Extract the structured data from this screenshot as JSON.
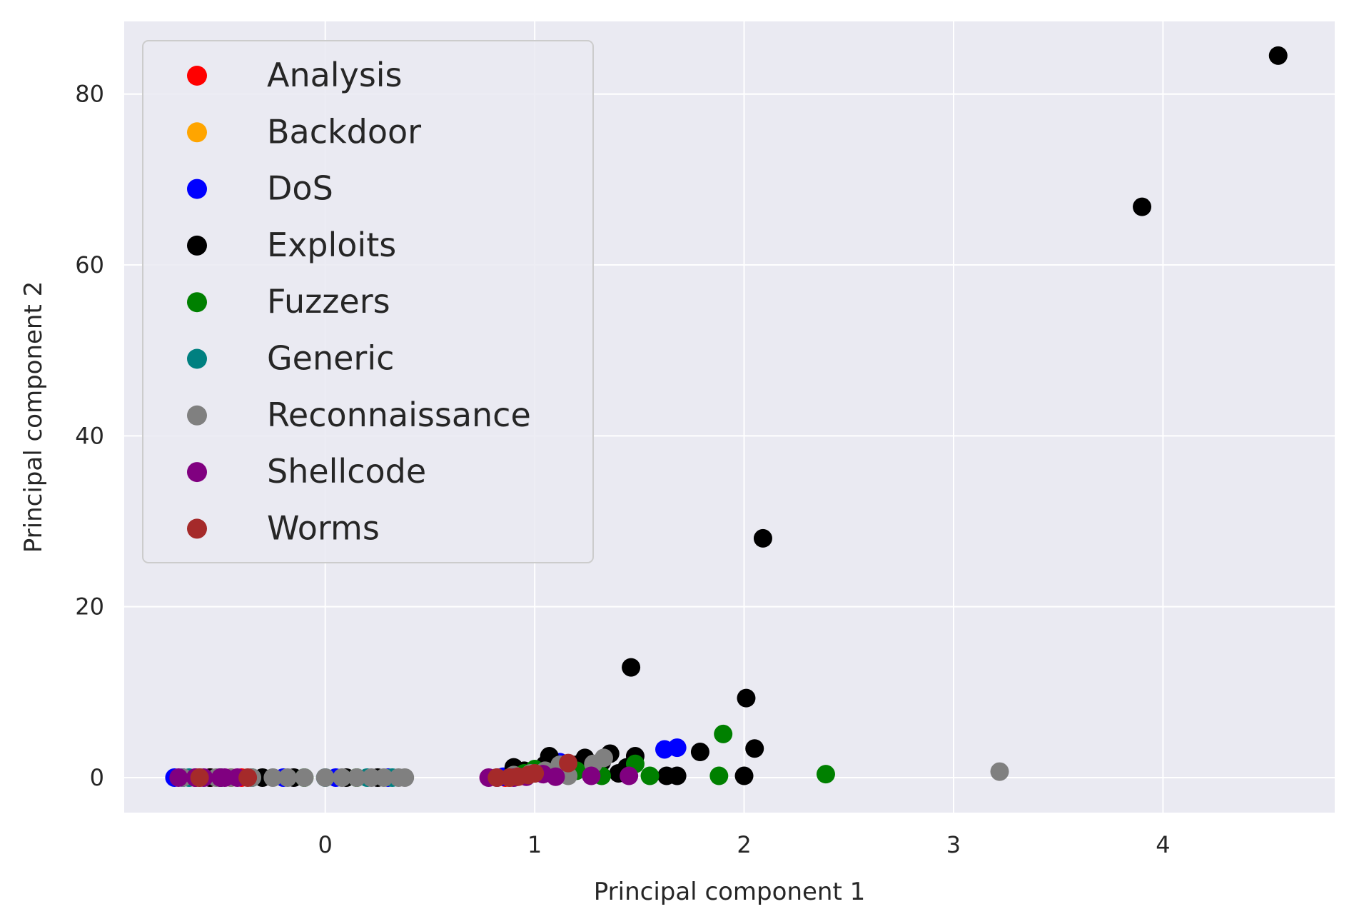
{
  "chart_data": {
    "type": "scatter",
    "title": "",
    "xlabel": "Principal component 1",
    "ylabel": "Principal component 2",
    "xlim": [
      -0.96,
      4.82
    ],
    "ylim": [
      -4.1,
      88.5
    ],
    "xticks": [
      0,
      1,
      2,
      3,
      4
    ],
    "yticks": [
      0,
      20,
      40,
      60,
      80
    ],
    "grid": true,
    "legend_position": "upper-left",
    "series": [
      {
        "name": "Analysis",
        "color": "#ff0000",
        "points": [
          [
            -0.62,
            0.0
          ],
          [
            -0.55,
            0.0
          ],
          [
            -0.4,
            0.0
          ],
          [
            0.86,
            0.0
          ],
          [
            0.92,
            0.1
          ]
        ]
      },
      {
        "name": "Backdoor",
        "color": "#ffa500",
        "points": [
          [
            -0.6,
            0.0
          ],
          [
            -0.45,
            0.0
          ],
          [
            0.88,
            0.0
          ],
          [
            0.95,
            0.2
          ]
        ]
      },
      {
        "name": "DoS",
        "color": "#0000ff",
        "points": [
          [
            -0.72,
            0.0
          ],
          [
            -0.68,
            0.0
          ],
          [
            -0.5,
            0.0
          ],
          [
            -0.2,
            0.0
          ],
          [
            0.05,
            0.0
          ],
          [
            0.3,
            0.0
          ],
          [
            0.85,
            0.1
          ],
          [
            1.0,
            0.6
          ],
          [
            1.12,
            1.8
          ],
          [
            1.3,
            1.0
          ],
          [
            1.62,
            3.3
          ],
          [
            1.68,
            3.5
          ]
        ]
      },
      {
        "name": "Exploits",
        "color": "#000000",
        "points": [
          [
            -0.55,
            0.0
          ],
          [
            -0.3,
            0.0
          ],
          [
            -0.15,
            0.0
          ],
          [
            0.1,
            0.0
          ],
          [
            0.25,
            0.0
          ],
          [
            0.9,
            1.2
          ],
          [
            0.95,
            0.8
          ],
          [
            1.0,
            0.5
          ],
          [
            1.05,
            1.5
          ],
          [
            1.07,
            2.5
          ],
          [
            1.1,
            1.0
          ],
          [
            1.15,
            0.8
          ],
          [
            1.2,
            1.5
          ],
          [
            1.24,
            2.3
          ],
          [
            1.28,
            0.7
          ],
          [
            1.32,
            1.8
          ],
          [
            1.36,
            2.8
          ],
          [
            1.4,
            0.5
          ],
          [
            1.44,
            1.2
          ],
          [
            1.48,
            2.5
          ],
          [
            1.46,
            12.9
          ],
          [
            1.63,
            0.2
          ],
          [
            1.68,
            0.2
          ],
          [
            1.79,
            3.0
          ],
          [
            2.0,
            0.2
          ],
          [
            2.01,
            9.3
          ],
          [
            2.05,
            3.4
          ],
          [
            2.09,
            28.0
          ],
          [
            3.9,
            66.8
          ],
          [
            4.55,
            84.5
          ]
        ]
      },
      {
        "name": "Fuzzers",
        "color": "#008000",
        "points": [
          [
            -0.5,
            0.0
          ],
          [
            -0.1,
            0.0
          ],
          [
            0.15,
            0.0
          ],
          [
            0.95,
            0.5
          ],
          [
            1.0,
            1.0
          ],
          [
            1.2,
            0.8
          ],
          [
            1.32,
            0.2
          ],
          [
            1.48,
            1.6
          ],
          [
            1.55,
            0.2
          ],
          [
            1.88,
            0.2
          ],
          [
            1.9,
            5.1
          ],
          [
            2.39,
            0.4
          ]
        ]
      },
      {
        "name": "Generic",
        "color": "#008080",
        "points": [
          [
            -0.65,
            0.0
          ],
          [
            -0.35,
            0.0
          ],
          [
            0.0,
            0.0
          ],
          [
            0.2,
            0.0
          ],
          [
            0.32,
            0.0
          ],
          [
            1.1,
            0.5
          ]
        ]
      },
      {
        "name": "Reconnaissance",
        "color": "#808080",
        "points": [
          [
            -0.68,
            0.0
          ],
          [
            -0.6,
            0.0
          ],
          [
            -0.52,
            0.0
          ],
          [
            -0.45,
            0.0
          ],
          [
            -0.35,
            0.0
          ],
          [
            -0.25,
            0.0
          ],
          [
            -0.18,
            0.0
          ],
          [
            -0.1,
            0.0
          ],
          [
            0.0,
            0.0
          ],
          [
            0.08,
            0.0
          ],
          [
            0.15,
            0.0
          ],
          [
            0.22,
            0.0
          ],
          [
            0.28,
            0.0
          ],
          [
            0.35,
            0.0
          ],
          [
            0.38,
            0.0
          ],
          [
            0.9,
            0.3
          ],
          [
            0.98,
            0.5
          ],
          [
            1.05,
            0.8
          ],
          [
            1.12,
            1.5
          ],
          [
            1.16,
            0.2
          ],
          [
            1.28,
            1.6
          ],
          [
            1.33,
            2.3
          ],
          [
            3.22,
            0.7
          ]
        ]
      },
      {
        "name": "Shellcode",
        "color": "#800080",
        "points": [
          [
            -0.7,
            0.0
          ],
          [
            -0.62,
            0.0
          ],
          [
            -0.58,
            0.0
          ],
          [
            -0.5,
            0.0
          ],
          [
            -0.48,
            0.0
          ],
          [
            -0.42,
            0.0
          ],
          [
            0.78,
            0.0
          ],
          [
            0.82,
            0.0
          ],
          [
            0.9,
            0.0
          ],
          [
            0.96,
            0.1
          ],
          [
            1.04,
            0.4
          ],
          [
            1.1,
            0.1
          ],
          [
            1.27,
            0.2
          ],
          [
            1.45,
            0.2
          ]
        ]
      },
      {
        "name": "Worms",
        "color": "#a52a2a",
        "points": [
          [
            -0.6,
            0.0
          ],
          [
            -0.37,
            0.0
          ],
          [
            0.82,
            0.0
          ],
          [
            0.88,
            0.0
          ],
          [
            0.92,
            0.1
          ],
          [
            0.97,
            0.3
          ],
          [
            1.0,
            0.5
          ],
          [
            1.16,
            1.7
          ]
        ]
      }
    ]
  }
}
